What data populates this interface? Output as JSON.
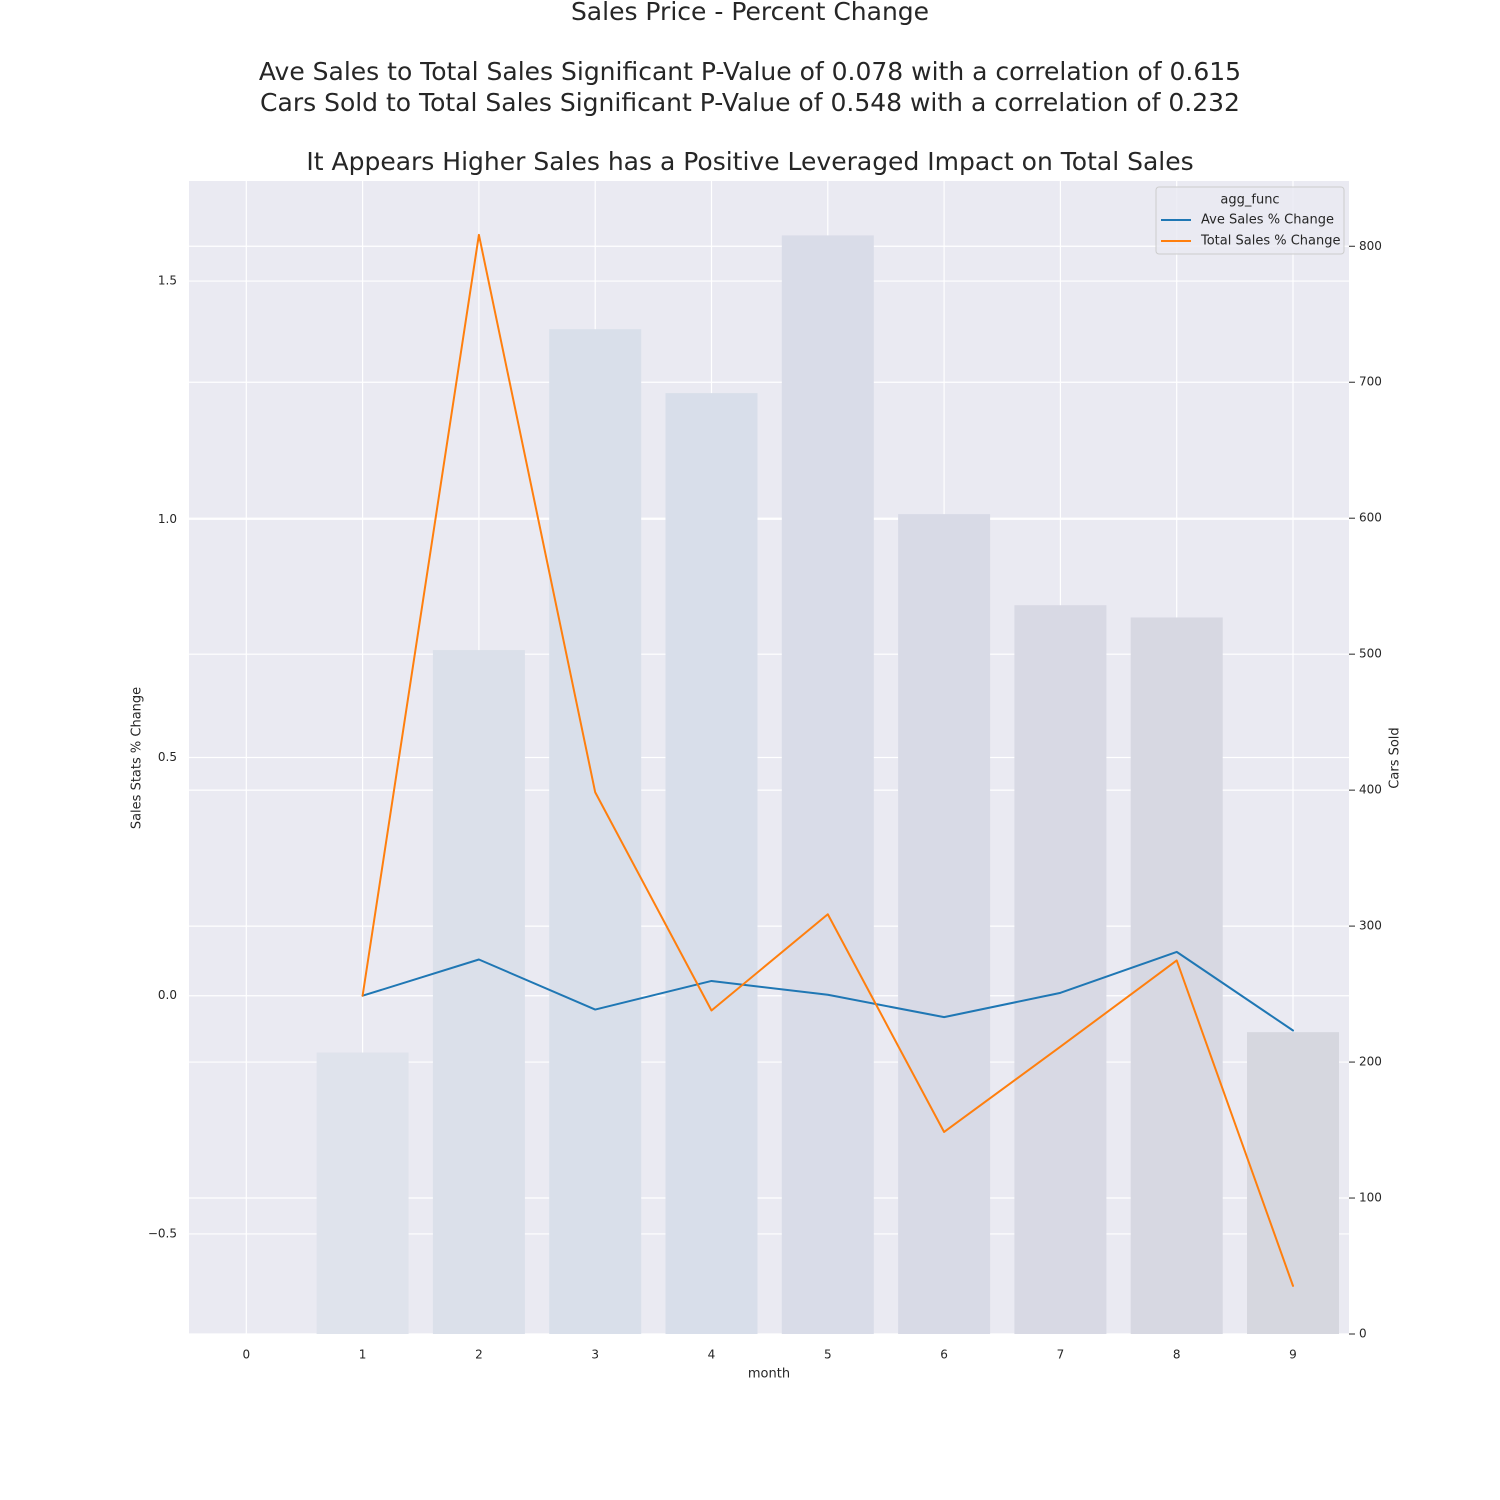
{
  "chart_data": {
    "type": "line",
    "title_lines": [
      "Sales Price - Percent Change",
      "Ave Sales to Total Sales Significant P-Value of 0.078 with a correlation of 0.615",
      " Cars Sold to Total Sales Significant P-Value of 0.548 with a correlation of 0.232",
      "It Appears Higher Sales has a Positive Leveraged Impact on Total Sales"
    ],
    "xlabel": "month",
    "ylabel_left": "Sales Stats % Change",
    "ylabel_right": "Cars Sold",
    "x": [
      0,
      1,
      2,
      3,
      4,
      5,
      6,
      7,
      8,
      9
    ],
    "x_ticks": [
      "0",
      "1",
      "2",
      "3",
      "4",
      "5",
      "6",
      "7",
      "8",
      "9"
    ],
    "ylim_left": [
      -0.71,
      1.71
    ],
    "yticks_left": [
      -0.5,
      0.0,
      0.5,
      1.0,
      1.5
    ],
    "ytick_labels_left": [
      "−0.5",
      "0.0",
      "0.5",
      "1.0",
      "1.5"
    ],
    "ylim_right": [
      0,
      848
    ],
    "yticks_right": [
      0,
      100,
      200,
      300,
      400,
      500,
      600,
      700,
      800
    ],
    "ytick_labels_right": [
      "0",
      "100",
      "200",
      "300",
      "400",
      "500",
      "600",
      "700",
      "800"
    ],
    "grid": true,
    "legend": {
      "title": "agg_func",
      "placement": "upper right",
      "entries": [
        "Ave Sales % Change",
        "Total Sales % Change"
      ]
    },
    "bars": {
      "name": "Cars Sold",
      "axis": "right",
      "x": [
        1,
        2,
        3,
        4,
        5,
        6,
        7,
        8,
        9
      ],
      "values": [
        207,
        503,
        739,
        692,
        808,
        603,
        536,
        527,
        222
      ],
      "colors": [
        "#dfe3ec",
        "#dbe0ea",
        "#d9dfea",
        "#d8deea",
        "#d9dce8",
        "#d8dae6",
        "#d8d9e4",
        "#d7d8e2",
        "#d6d7df"
      ]
    },
    "series": [
      {
        "name": "Ave Sales % Change",
        "color": "#1f77b4",
        "x": [
          1,
          2,
          3,
          4,
          5,
          6,
          7,
          8,
          9
        ],
        "values": [
          0.0,
          0.076,
          -0.029,
          0.031,
          0.002,
          -0.045,
          0.006,
          0.092,
          -0.073
        ]
      },
      {
        "name": "Total Sales % Change",
        "color": "#ff7f0e",
        "x": [
          1,
          2,
          3,
          4,
          5,
          6,
          7,
          8,
          9
        ],
        "values": [
          0.0,
          1.597,
          0.427,
          -0.031,
          0.171,
          -0.286,
          -0.107,
          0.074,
          -0.609
        ]
      }
    ]
  }
}
